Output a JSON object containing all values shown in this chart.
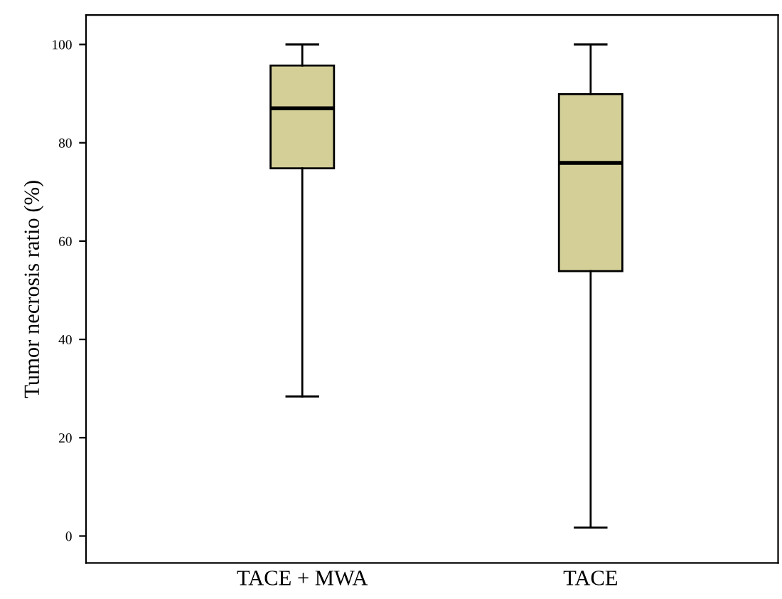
{
  "chart_data": {
    "type": "box",
    "ylabel": "Tumor necrosis ratio (%)",
    "categories": [
      "TACE + MWA",
      "TACE"
    ],
    "boxes": [
      {
        "low": 28.4,
        "q1": 74.8,
        "median": 87,
        "q3": 95.7,
        "high": 100
      },
      {
        "low": 1.7,
        "q1": 53.9,
        "median": 75.9,
        "q3": 89.9,
        "high": 100
      }
    ],
    "color": "#d3cf97",
    "ylim": [
      -5.5,
      106
    ],
    "yticks": [
      0,
      20,
      40,
      60,
      80,
      100
    ],
    "grid": false
  }
}
